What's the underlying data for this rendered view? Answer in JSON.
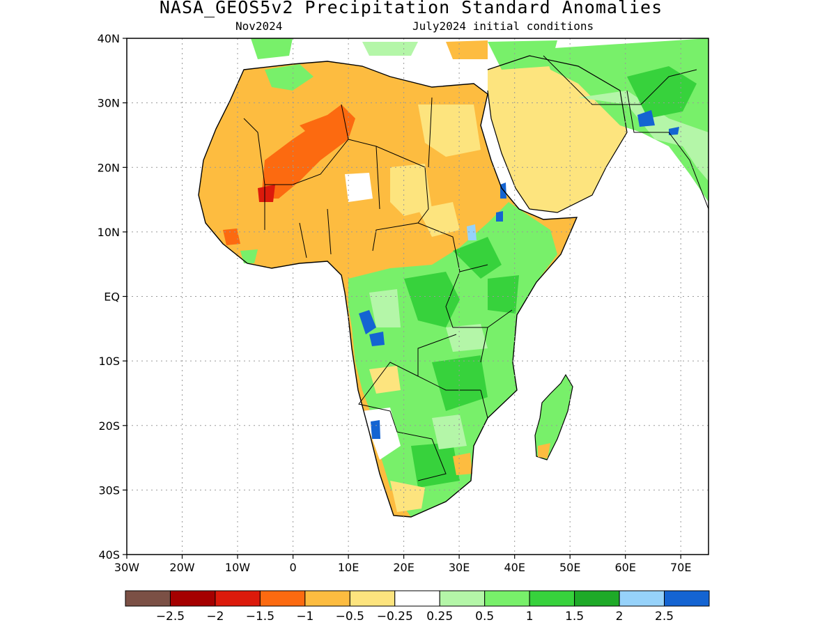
{
  "header": {
    "title": "NASA_GEOS5v2 Precipitation Standard Anomalies",
    "target_month": "Nov2024",
    "initial_conditions": "July2024 initial conditions"
  },
  "axes": {
    "lat_labels": [
      "40N",
      "30N",
      "20N",
      "10N",
      "EQ",
      "10S",
      "20S",
      "30S",
      "40S"
    ],
    "lat_values": [
      40,
      30,
      20,
      10,
      0,
      -10,
      -20,
      -30,
      -40
    ],
    "lon_labels": [
      "30W",
      "20W",
      "10W",
      "0",
      "10E",
      "20E",
      "30E",
      "40E",
      "50E",
      "60E",
      "70E"
    ],
    "lon_values": [
      -30,
      -20,
      -10,
      0,
      10,
      20,
      30,
      40,
      50,
      60,
      70
    ],
    "lon_range": [
      -30,
      75
    ],
    "lat_range": [
      -40,
      40
    ],
    "grid": "dotted"
  },
  "colorbar": {
    "colors": [
      "#7b5045",
      "#a50000",
      "#dc1a0b",
      "#fc6a10",
      "#fdbc40",
      "#fde47e",
      "#ffffff",
      "#b4f6a8",
      "#78f06a",
      "#37d23c",
      "#1eaa28",
      "#96d2fa",
      "#1464d2"
    ],
    "labels": [
      "-2.5",
      "-2",
      "-1.5",
      "-1",
      "-0.5",
      "-0.25",
      "0.25",
      "0.5",
      "1",
      "1.5",
      "2",
      "2.5"
    ]
  },
  "regions": {
    "sahara_sahel": "dry anomaly (orange)",
    "central_east_africa": "wet anomaly (green)"
  }
}
